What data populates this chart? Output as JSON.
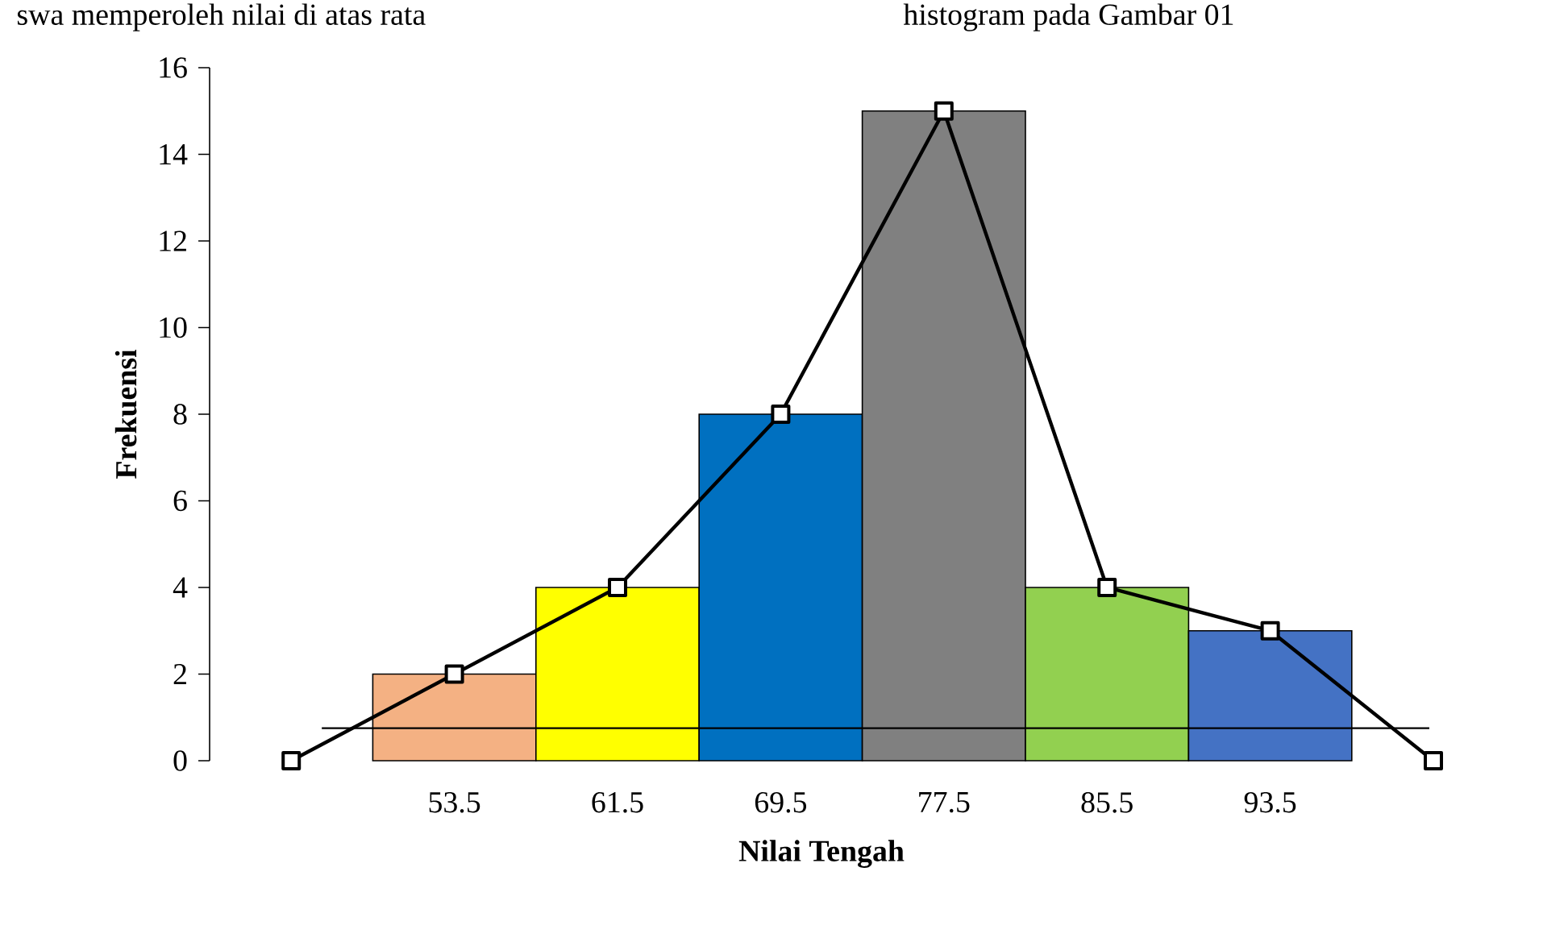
{
  "chart_data": {
    "type": "histogram",
    "xlabel": "Nilai Tengah",
    "ylabel": "Frekuensi",
    "bins": [
      49.5,
      57.5,
      65.5,
      73.5,
      81.5,
      89.5,
      97.5
    ],
    "values": [
      2,
      4,
      8,
      15,
      4,
      3
    ],
    "colors": [
      "#f4b183",
      "#ffff00",
      "#0070c0",
      "#808080",
      "#92d050",
      "#4472c4"
    ],
    "series": [
      {
        "type": "line",
        "x": [
          45.5,
          53.5,
          61.5,
          69.5,
          77.5,
          85.5,
          93.5,
          101.5
        ],
        "values": [
          0,
          2,
          4,
          8,
          15,
          4,
          3,
          0
        ],
        "color": "#000000"
      },
      {
        "type": "line",
        "x": [
          47,
          101.3
        ],
        "values": [
          0.75,
          0.75
        ],
        "color": "#000000",
        "marker": "none"
      }
    ],
    "xlim": [
      41.5,
      101.5
    ],
    "ylim": [
      0,
      16
    ],
    "xticks": [
      53.5,
      61.5,
      69.5,
      77.5,
      85.5,
      93.5
    ],
    "yticks": [
      0,
      2,
      4,
      6,
      8,
      10,
      12,
      14,
      16
    ],
    "marker": "square",
    "grid": false,
    "annotations": [
      "swa memperoleh nilai di atas rata",
      "histogram pada Gambar 01"
    ]
  }
}
